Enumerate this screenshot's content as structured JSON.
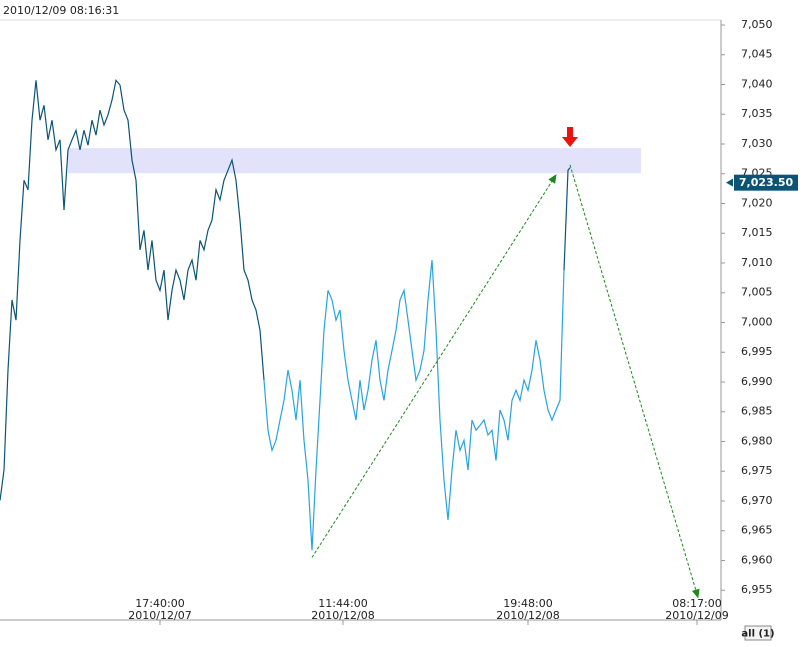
{
  "chart_data": {
    "type": "line",
    "title": "2010/12/09 08:16:31",
    "xlim": [
      0,
      720
    ],
    "ylim": [
      6950,
      7054.2
    ],
    "xticks": [
      {
        "value": 160,
        "label": "17:40:00\n2010/12/07"
      },
      {
        "value": 343,
        "label": "11:44:00\n2010/12/08"
      },
      {
        "value": 528,
        "label": "19:48:00\n2010/12/08"
      },
      {
        "value": 697,
        "label": "08:17:00\n2010/12/09"
      }
    ],
    "yticks": [
      {
        "value": 6955,
        "label": "6,955"
      },
      {
        "value": 6960,
        "label": "6,960"
      },
      {
        "value": 6965,
        "label": "6,965"
      },
      {
        "value": 6970,
        "label": "6,970"
      },
      {
        "value": 6975,
        "label": "6,975"
      },
      {
        "value": 6980,
        "label": "6,980"
      },
      {
        "value": 6985,
        "label": "6,985"
      },
      {
        "value": 6990,
        "label": "6,990"
      },
      {
        "value": 6995,
        "label": "6,995"
      },
      {
        "value": 7000,
        "label": "7,000"
      },
      {
        "value": 7005,
        "label": "7,005"
      },
      {
        "value": 7010,
        "label": "7,010"
      },
      {
        "value": 7015,
        "label": "7,015"
      },
      {
        "value": 7020,
        "label": "7,020"
      },
      {
        "value": 7025,
        "label": "7,025"
      },
      {
        "value": 7030,
        "label": "7,030"
      },
      {
        "value": 7035,
        "label": "7,035"
      },
      {
        "value": 7040,
        "label": "7,040"
      },
      {
        "value": 7045,
        "label": "7,045"
      },
      {
        "value": 7050,
        "label": "7,050"
      }
    ],
    "series": [
      {
        "color": "#0b5475",
        "x": [
          0,
          4,
          8,
          12,
          16,
          20,
          24,
          28,
          32,
          36,
          40,
          44,
          48,
          52,
          56,
          60,
          64,
          68,
          72,
          76,
          80,
          84,
          88,
          92,
          96,
          100,
          104,
          108,
          112,
          116,
          120,
          124,
          128,
          132,
          136,
          140,
          144,
          148,
          152,
          156,
          160,
          164,
          168,
          172,
          176,
          180,
          184,
          188,
          192,
          196,
          200,
          204,
          208,
          212,
          216,
          220,
          224,
          228,
          232,
          236,
          240,
          244,
          248,
          252,
          256,
          260,
          264
        ],
        "values": [
          6970.1,
          6975.2,
          6992.0,
          7003.8,
          7000.4,
          7013.8,
          7023.9,
          7022.3,
          7034.0,
          7040.7,
          7034.0,
          7036.5,
          7030.7,
          7034.0,
          7029.0,
          7030.7,
          7018.9,
          7029.0,
          7030.7,
          7032.3,
          7029.0,
          7032.3,
          7029.8,
          7034.0,
          7031.5,
          7035.7,
          7033.2,
          7034.9,
          7037.4,
          7040.7,
          7039.9,
          7035.7,
          7034.0,
          7027.3,
          7023.9,
          7012.2,
          7015.5,
          7008.8,
          7013.8,
          7007.1,
          7005.4,
          7008.8,
          7000.4,
          7005.4,
          7008.8,
          7007.1,
          7003.8,
          7008.8,
          7010.5,
          7007.1,
          7013.8,
          7012.2,
          7015.5,
          7017.2,
          7022.3,
          7020.6,
          7023.9,
          7025.6,
          7027.3,
          7023.9,
          7017.2,
          7008.8,
          7007.1,
          7003.8,
          7002.1,
          6998.7,
          6990.3
        ]
      },
      {
        "color": "#27a3e3",
        "x": [
          264,
          268,
          272,
          276,
          280,
          284,
          288,
          292,
          296,
          300,
          304,
          308,
          312,
          316,
          320,
          324,
          328,
          332,
          336,
          340,
          344,
          348,
          352,
          356,
          360,
          364,
          368,
          372,
          376,
          380,
          384,
          388,
          392,
          396,
          400,
          404,
          408,
          412,
          416,
          420,
          424,
          428,
          432,
          436,
          440,
          444,
          448,
          452,
          456,
          460,
          464,
          468,
          472,
          476,
          480,
          484,
          488,
          492,
          496,
          500,
          504,
          508,
          512,
          516,
          520,
          524,
          528,
          532,
          536,
          540,
          544,
          548,
          552,
          556,
          560,
          564
        ],
        "values": [
          6990.3,
          6981.9,
          6978.5,
          6980.2,
          6983.6,
          6986.9,
          6992.0,
          6988.6,
          6983.6,
          6990.3,
          6980.2,
          6973.5,
          6961.7,
          6975.2,
          6986.9,
          6998.7,
          7005.4,
          7003.8,
          7000.4,
          7002.1,
          6995.3,
          6990.3,
          6986.9,
          6983.6,
          6990.3,
          6985.3,
          6988.6,
          6993.7,
          6997.0,
          6990.3,
          6986.9,
          6992.0,
          6995.3,
          6998.7,
          7003.8,
          7005.4,
          7000.4,
          6995.3,
          6990.3,
          6992.0,
          6995.3,
          7003.8,
          7010.5,
          6998.7,
          6983.6,
          6973.5,
          6966.8,
          6975.2,
          6981.9,
          6978.5,
          6980.2,
          6975.2,
          6983.6,
          6981.9,
          6982.7,
          6983.6,
          6981.1,
          6981.9,
          6976.8,
          6985.3,
          6983.6,
          6980.2,
          6986.9,
          6988.6,
          6986.9,
          6990.3,
          6988.6,
          6992.0,
          6997.0,
          6993.7,
          6988.6,
          6985.3,
          6983.6,
          6985.3,
          6986.9,
          7008.8
        ]
      },
      {
        "color": "#0b5475",
        "x": [
          564,
          568,
          570
        ],
        "values": [
          7008.8,
          7025.6,
          7026.0
        ]
      }
    ],
    "last_price": {
      "value": 7023.5,
      "label": "7,023.50",
      "color": "#0b5475"
    },
    "zone": {
      "xmin": 68,
      "xmax": 641,
      "ymin": 7025.1,
      "ymax": 7029.3,
      "color": "#e2e2fb"
    },
    "trend_arrows": [
      {
        "x": [
          312,
          556
        ],
        "y": [
          6960.5,
          7024.8
        ],
        "color": "#1a8a1a"
      },
      {
        "x": [
          570,
          698
        ],
        "y": [
          7026.5,
          6953.8
        ],
        "color": "#1a8a1a"
      }
    ],
    "signal_marker": {
      "x": 570,
      "y": 7029.5,
      "color": "#ee1111"
    },
    "range_button": "all (1)"
  }
}
